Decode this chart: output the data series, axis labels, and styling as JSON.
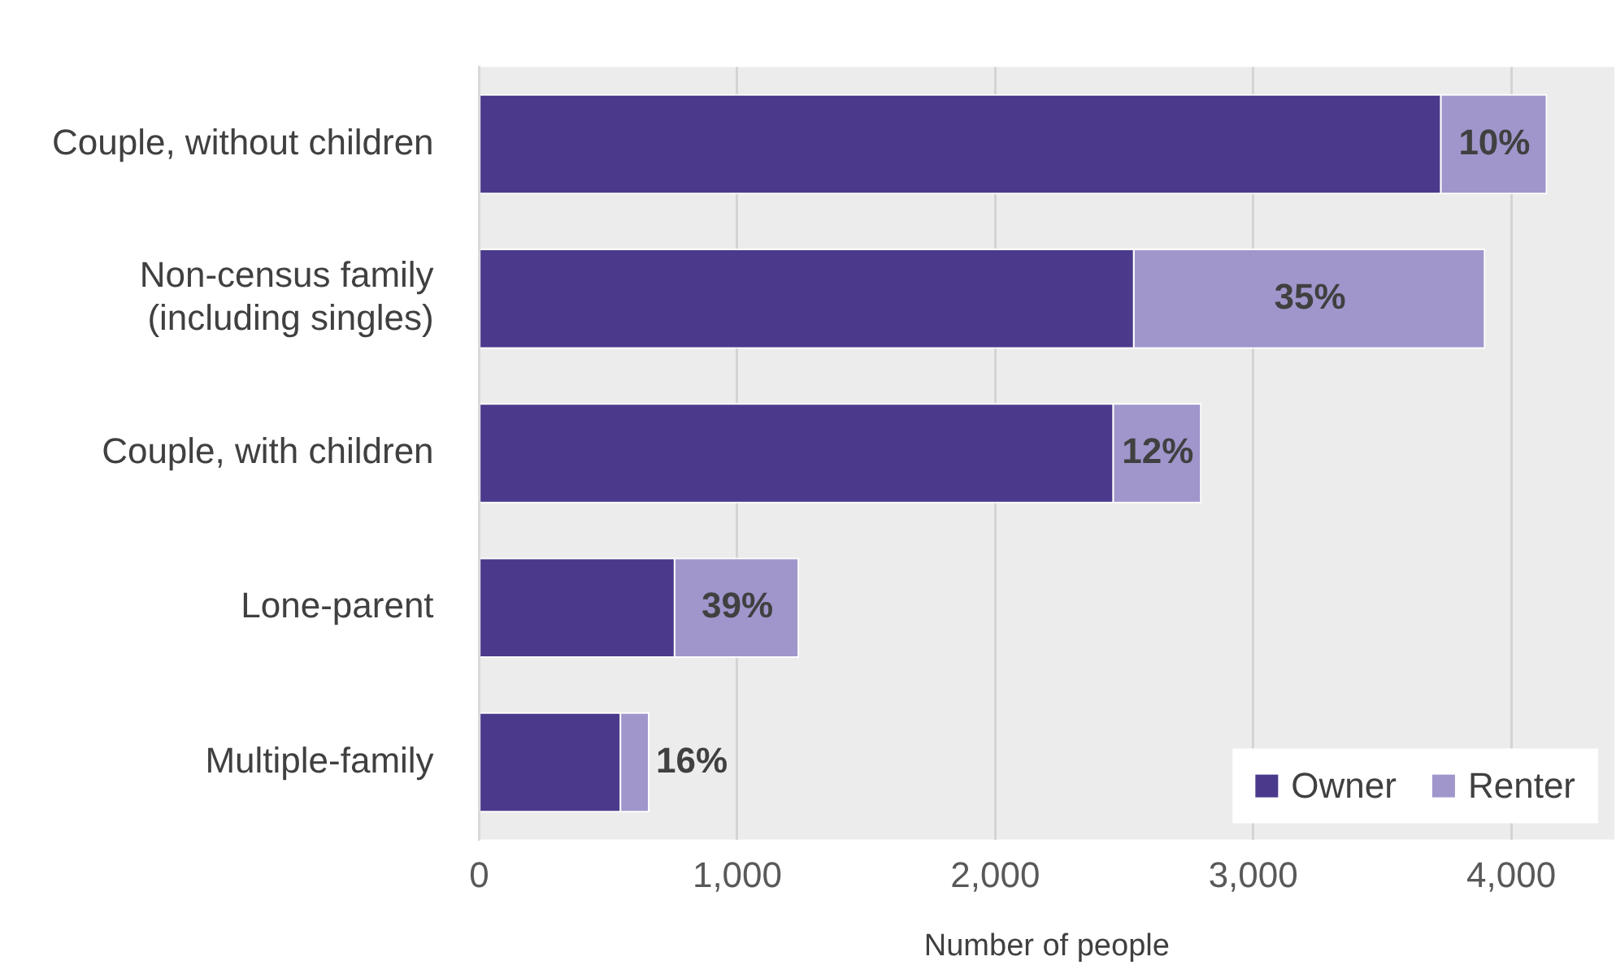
{
  "chart_data": {
    "type": "bar",
    "orientation": "horizontal",
    "stacked": true,
    "xlabel": "Number of people",
    "categories": [
      "Couple, without children",
      "Non-census family (including singles)",
      "Couple, with children",
      "Lone-parent",
      "Multiple-family"
    ],
    "series": [
      {
        "name": "Owner",
        "color": "#4b3a8c",
        "values": [
          3730,
          2540,
          2460,
          760,
          550
        ]
      },
      {
        "name": "Renter",
        "color": "#a096cc",
        "values": [
          410,
          1360,
          340,
          480,
          110
        ]
      }
    ],
    "annotations": [
      "10%",
      "35%",
      "12%",
      "39%",
      "16%"
    ],
    "xlim": [
      0,
      4400
    ],
    "xticks": [
      {
        "value": 0,
        "label": "0"
      },
      {
        "value": 1000,
        "label": "1,000"
      },
      {
        "value": 2000,
        "label": "2,000"
      },
      {
        "value": 3000,
        "label": "3,000"
      },
      {
        "value": 4000,
        "label": "4,000"
      }
    ],
    "grid": "x",
    "legend": "bottom right"
  }
}
